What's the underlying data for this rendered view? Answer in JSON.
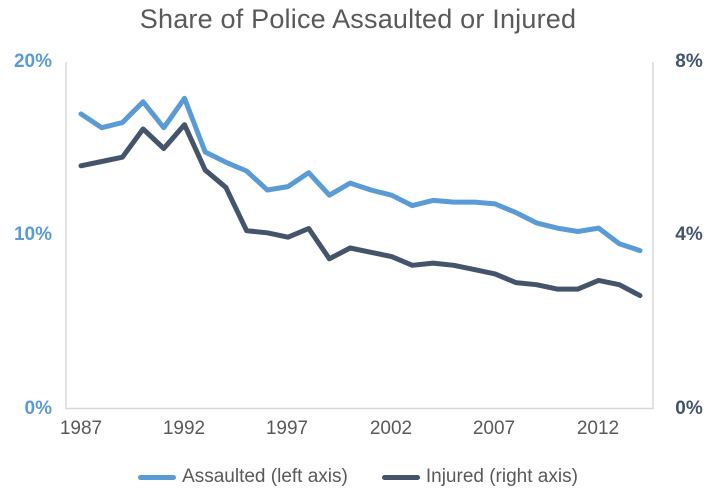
{
  "title": "Share of Police Assaulted or Injured",
  "colors": {
    "assaulted_line": "#5B9BD5",
    "injured_line": "#44546A",
    "axis_frame": "#D9D9D9",
    "label_gray": "#595959"
  },
  "chart_data": {
    "type": "line",
    "title": "Share of Police Assaulted or Injured",
    "grid": false,
    "legend_position": "bottom",
    "x": [
      1987,
      1988,
      1989,
      1990,
      1991,
      1992,
      1993,
      1994,
      1995,
      1996,
      1997,
      1998,
      1999,
      2000,
      2001,
      2002,
      2003,
      2004,
      2005,
      2006,
      2007,
      2008,
      2009,
      2010,
      2011,
      2012,
      2013,
      2014
    ],
    "x_tick_labels": [
      "1987",
      "1992",
      "1997",
      "2002",
      "2007",
      "2012"
    ],
    "left_axis": {
      "range": [
        0,
        20
      ],
      "tick_labels": [
        "20%",
        "10%",
        "0%"
      ],
      "color": "#5B9BD5"
    },
    "right_axis": {
      "range": [
        0,
        8
      ],
      "tick_labels": [
        "8%",
        "4%",
        "0%"
      ],
      "color": "#44546A"
    },
    "series": [
      {
        "name": "Assaulted (left axis)",
        "axis": "left",
        "color": "#5B9BD5",
        "values": [
          17.0,
          16.2,
          16.5,
          17.7,
          16.2,
          17.9,
          14.8,
          14.2,
          13.7,
          12.6,
          12.8,
          13.6,
          12.3,
          13.0,
          12.6,
          12.3,
          11.7,
          12.0,
          11.9,
          11.9,
          11.8,
          11.3,
          10.7,
          10.4,
          10.2,
          10.4,
          9.5,
          9.1
        ]
      },
      {
        "name": "Injured (right axis)",
        "axis": "right",
        "color": "#44546A",
        "values": [
          5.6,
          5.7,
          5.8,
          6.45,
          6.0,
          6.55,
          5.5,
          5.1,
          4.1,
          4.05,
          3.95,
          4.15,
          3.45,
          3.7,
          3.6,
          3.5,
          3.3,
          3.35,
          3.3,
          3.2,
          3.1,
          2.9,
          2.85,
          2.75,
          2.75,
          2.95,
          2.85,
          2.6
        ]
      }
    ]
  },
  "legend": {
    "items": [
      {
        "label": "Assaulted (left axis)"
      },
      {
        "label": "Injured (right axis)"
      }
    ]
  }
}
